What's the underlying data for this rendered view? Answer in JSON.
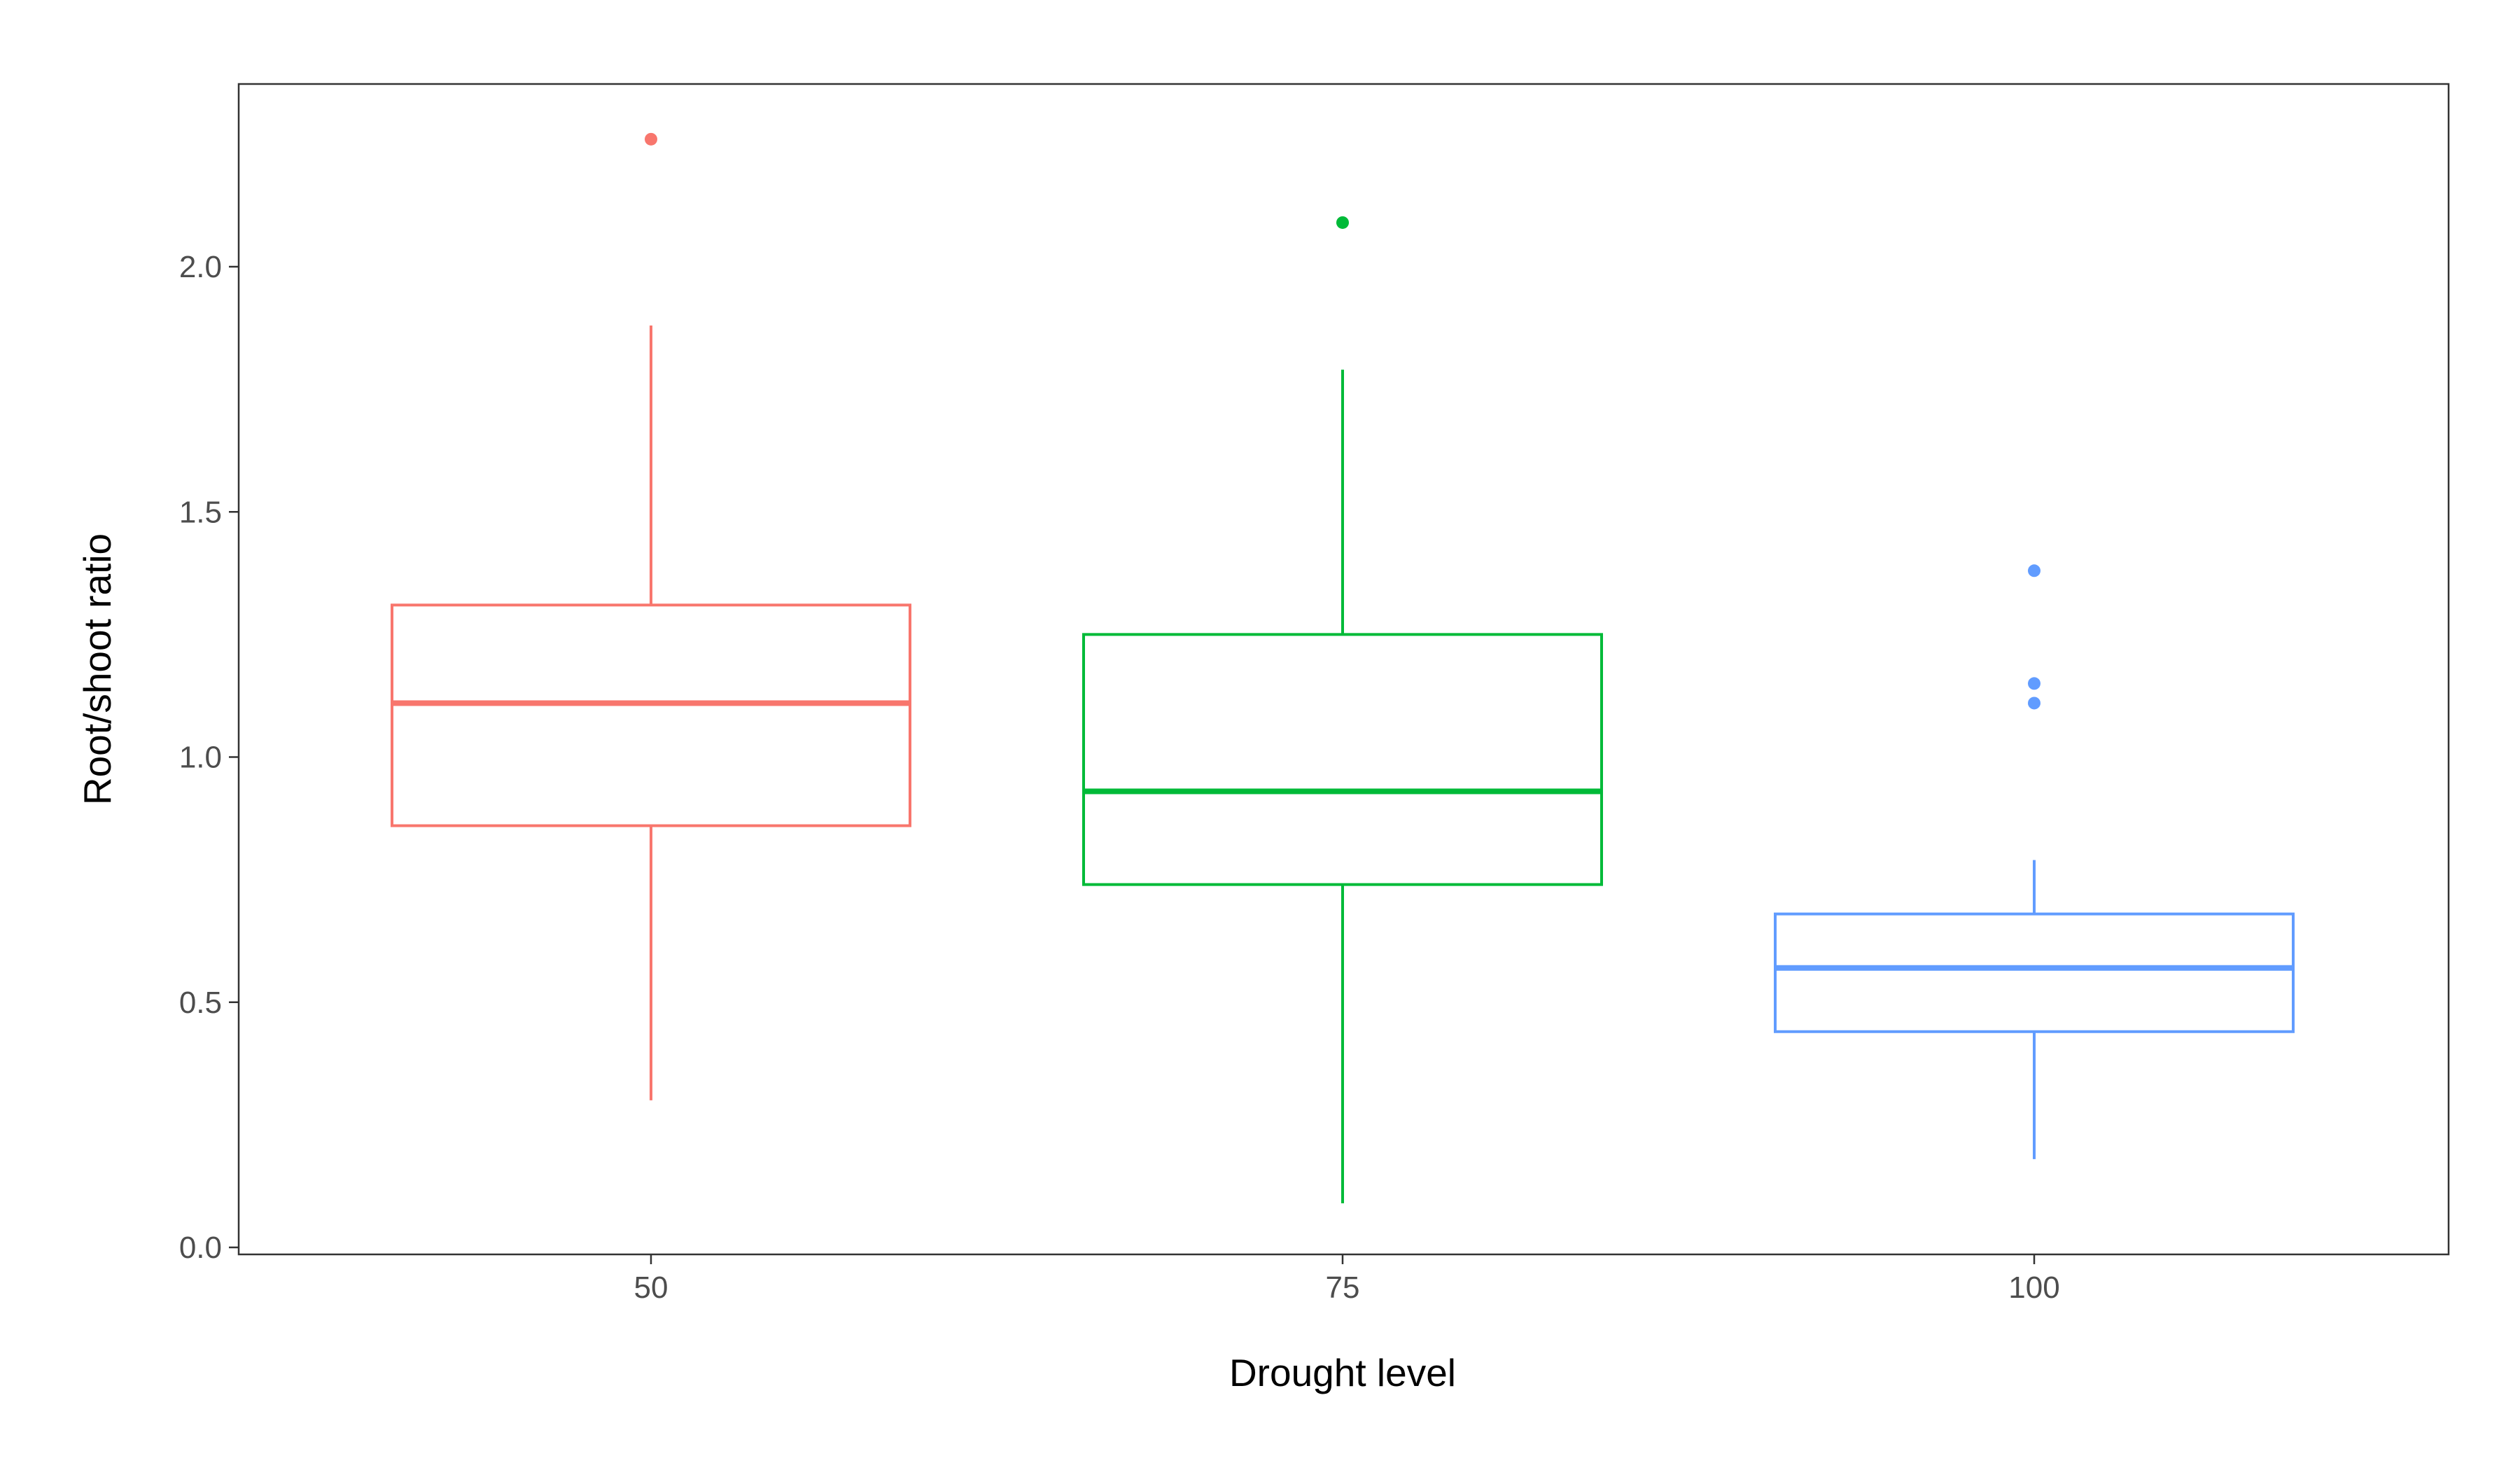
{
  "chart_data": {
    "type": "boxplot",
    "xlabel": "Drought level",
    "ylabel": "Root/shoot ratio",
    "ylim": [
      -0.02,
      2.37
    ],
    "yticks": [
      0.0,
      0.5,
      1.0,
      1.5,
      2.0
    ],
    "ytick_labels": [
      "0.0",
      "0.5",
      "1.0",
      "1.5",
      "2.0"
    ],
    "grid": false,
    "legend": "none",
    "categories": [
      "50",
      "75",
      "100"
    ],
    "series": [
      {
        "category": "50",
        "color": "#F8766D",
        "whisker_low": 0.3,
        "q1": 0.86,
        "median": 1.11,
        "q3": 1.31,
        "whisker_high": 1.88,
        "outliers": [
          2.26
        ]
      },
      {
        "category": "75",
        "color": "#00BA38",
        "whisker_low": 0.09,
        "q1": 0.74,
        "median": 0.93,
        "q3": 1.25,
        "whisker_high": 1.79,
        "outliers": [
          2.09
        ]
      },
      {
        "category": "100",
        "color": "#619CFF",
        "whisker_low": 0.18,
        "q1": 0.44,
        "median": 0.57,
        "q3": 0.68,
        "whisker_high": 0.79,
        "outliers": [
          1.11,
          1.15,
          1.38
        ]
      }
    ]
  }
}
